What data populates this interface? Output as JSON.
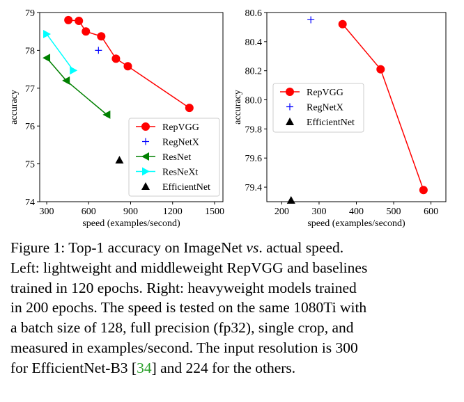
{
  "chart_data": [
    {
      "type": "line",
      "xlabel": "speed (examples/second)",
      "ylabel": "accuracy",
      "xlim": [
        250,
        1560
      ],
      "ylim": [
        74,
        79
      ],
      "xticks": [
        300,
        600,
        900,
        1200,
        1500
      ],
      "yticks": [
        74,
        75,
        76,
        77,
        78,
        79
      ],
      "legend_position": "lower-right",
      "grid": false,
      "series": [
        {
          "name": "RepVGG",
          "color": "#ff0000",
          "marker": "circle",
          "line": true,
          "points": [
            [
              455,
              78.8
            ],
            [
              530,
              78.78
            ],
            [
              580,
              78.5
            ],
            [
              690,
              78.37
            ],
            [
              795,
              77.78
            ],
            [
              880,
              77.58
            ],
            [
              1320,
              76.48
            ]
          ]
        },
        {
          "name": "RegNetX",
          "color": "#0000ff",
          "marker": "plus",
          "line": false,
          "points": [
            [
              670,
              78.0
            ]
          ]
        },
        {
          "name": "ResNet",
          "color": "#008000",
          "marker": "triangle-left",
          "line": true,
          "points": [
            [
              300,
              77.8
            ],
            [
              440,
              77.2
            ],
            [
              730,
              76.3
            ]
          ]
        },
        {
          "name": "ResNeXt",
          "color": "#00ffff",
          "marker": "triangle-right",
          "line": true,
          "points": [
            [
              300,
              78.43
            ],
            [
              490,
              77.47
            ]
          ]
        },
        {
          "name": "EfficientNet",
          "color": "#000000",
          "marker": "triangle-up",
          "line": false,
          "points": [
            [
              820,
              75.1
            ]
          ]
        }
      ]
    },
    {
      "type": "line",
      "xlabel": "speed (examples/second)",
      "ylabel": "accuracy",
      "xlim": [
        160,
        640
      ],
      "ylim": [
        79.3,
        80.6
      ],
      "xticks": [
        200,
        300,
        400,
        500,
        600
      ],
      "yticks": [
        79.4,
        79.6,
        79.8,
        80.0,
        80.2,
        80.4,
        80.6
      ],
      "legend_position": "center-left",
      "grid": false,
      "series": [
        {
          "name": "RepVGG",
          "color": "#ff0000",
          "marker": "circle",
          "line": true,
          "points": [
            [
              363,
              80.52
            ],
            [
              465,
              80.21
            ],
            [
              580,
              79.38
            ]
          ]
        },
        {
          "name": "RegNetX",
          "color": "#0000ff",
          "marker": "plus",
          "line": false,
          "points": [
            [
              278,
              80.55
            ]
          ]
        },
        {
          "name": "EfficientNet",
          "color": "#000000",
          "marker": "triangle-up",
          "line": false,
          "points": [
            [
              225,
              79.31
            ]
          ]
        }
      ]
    }
  ],
  "caption": {
    "lines": [
      {
        "prefix": "Figure 1: Top-1 accuracy on ImageNet ",
        "vs": "vs",
        "suffix": ". actual speed."
      },
      {
        "text": "Left: lightweight and middleweight RepVGG and baselines"
      },
      {
        "text": "trained in 120 epochs.  Right: heavyweight models trained"
      },
      {
        "text": "in 200 epochs. The speed is tested on the same 1080Ti with"
      },
      {
        "text": "a batch size of 128, full precision (fp32), single crop, and"
      },
      {
        "text": "measured in examples/second. The input resolution is 300"
      },
      {
        "prefix": "for EfficientNet-B3 [",
        "ref": "34",
        "suffix": "] and 224 for the others."
      }
    ]
  }
}
